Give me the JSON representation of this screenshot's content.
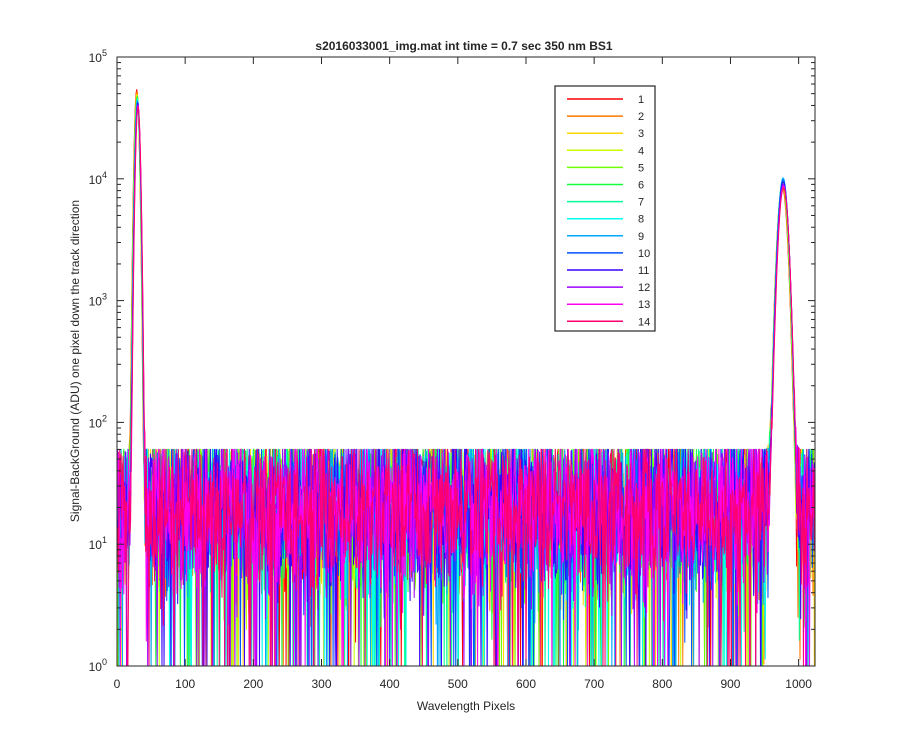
{
  "chart_data": {
    "type": "line",
    "title": "s2016033001_img.mat int time = 0.7 sec  350 nm BS1",
    "xlabel": "Wavelength Pixels",
    "ylabel": "Signal-BackGround (ADU) one pixel down the track direction",
    "xlim": [
      0,
      1024
    ],
    "ylim": [
      1,
      100000
    ],
    "yscale": "log",
    "x_ticks": [
      0,
      100,
      200,
      300,
      400,
      500,
      600,
      700,
      800,
      900,
      1000
    ],
    "y_ticks": [
      {
        "value": 1,
        "base": "10",
        "exp": "0"
      },
      {
        "value": 10,
        "base": "10",
        "exp": "1"
      },
      {
        "value": 100,
        "base": "10",
        "exp": "2"
      },
      {
        "value": 1000,
        "base": "10",
        "exp": "3"
      },
      {
        "value": 10000,
        "base": "10",
        "exp": "4"
      },
      {
        "value": 100000,
        "base": "10",
        "exp": "5"
      }
    ],
    "grid": false,
    "legend_position": "top-right",
    "x_start": 0,
    "x_end": 1023,
    "noise_level": 20,
    "noise_min": 1,
    "noise_max": 60,
    "peaks": [
      {
        "center": 30,
        "height": 48000
      },
      {
        "center": 977,
        "height": 9000
      }
    ],
    "series": [
      {
        "name": "1",
        "color": "#ff0000",
        "peak1": 54000,
        "peak2": 8500
      },
      {
        "name": "2",
        "color": "#ff7700",
        "peak1": 52000,
        "peak2": 8800
      },
      {
        "name": "3",
        "color": "#ffd700",
        "peak1": 50000,
        "peak2": 9000
      },
      {
        "name": "4",
        "color": "#c8ff00",
        "peak1": 49000,
        "peak2": 9200
      },
      {
        "name": "5",
        "color": "#6eff00",
        "peak1": 48000,
        "peak2": 9300
      },
      {
        "name": "6",
        "color": "#14ff3c",
        "peak1": 47000,
        "peak2": 9500
      },
      {
        "name": "7",
        "color": "#00ff9a",
        "peak1": 46000,
        "peak2": 9700
      },
      {
        "name": "8",
        "color": "#00fff0",
        "peak1": 45000,
        "peak2": 9900
      },
      {
        "name": "9",
        "color": "#00a8ff",
        "peak1": 44000,
        "peak2": 10200
      },
      {
        "name": "10",
        "color": "#0050ff",
        "peak1": 43000,
        "peak2": 9800
      },
      {
        "name": "11",
        "color": "#3c00ff",
        "peak1": 42000,
        "peak2": 9400
      },
      {
        "name": "12",
        "color": "#a000ff",
        "peak1": 41000,
        "peak2": 9000
      },
      {
        "name": "13",
        "color": "#ff00f0",
        "peak1": 40000,
        "peak2": 8700
      },
      {
        "name": "14",
        "color": "#ff0070",
        "peak1": 39000,
        "peak2": 8400
      }
    ]
  }
}
